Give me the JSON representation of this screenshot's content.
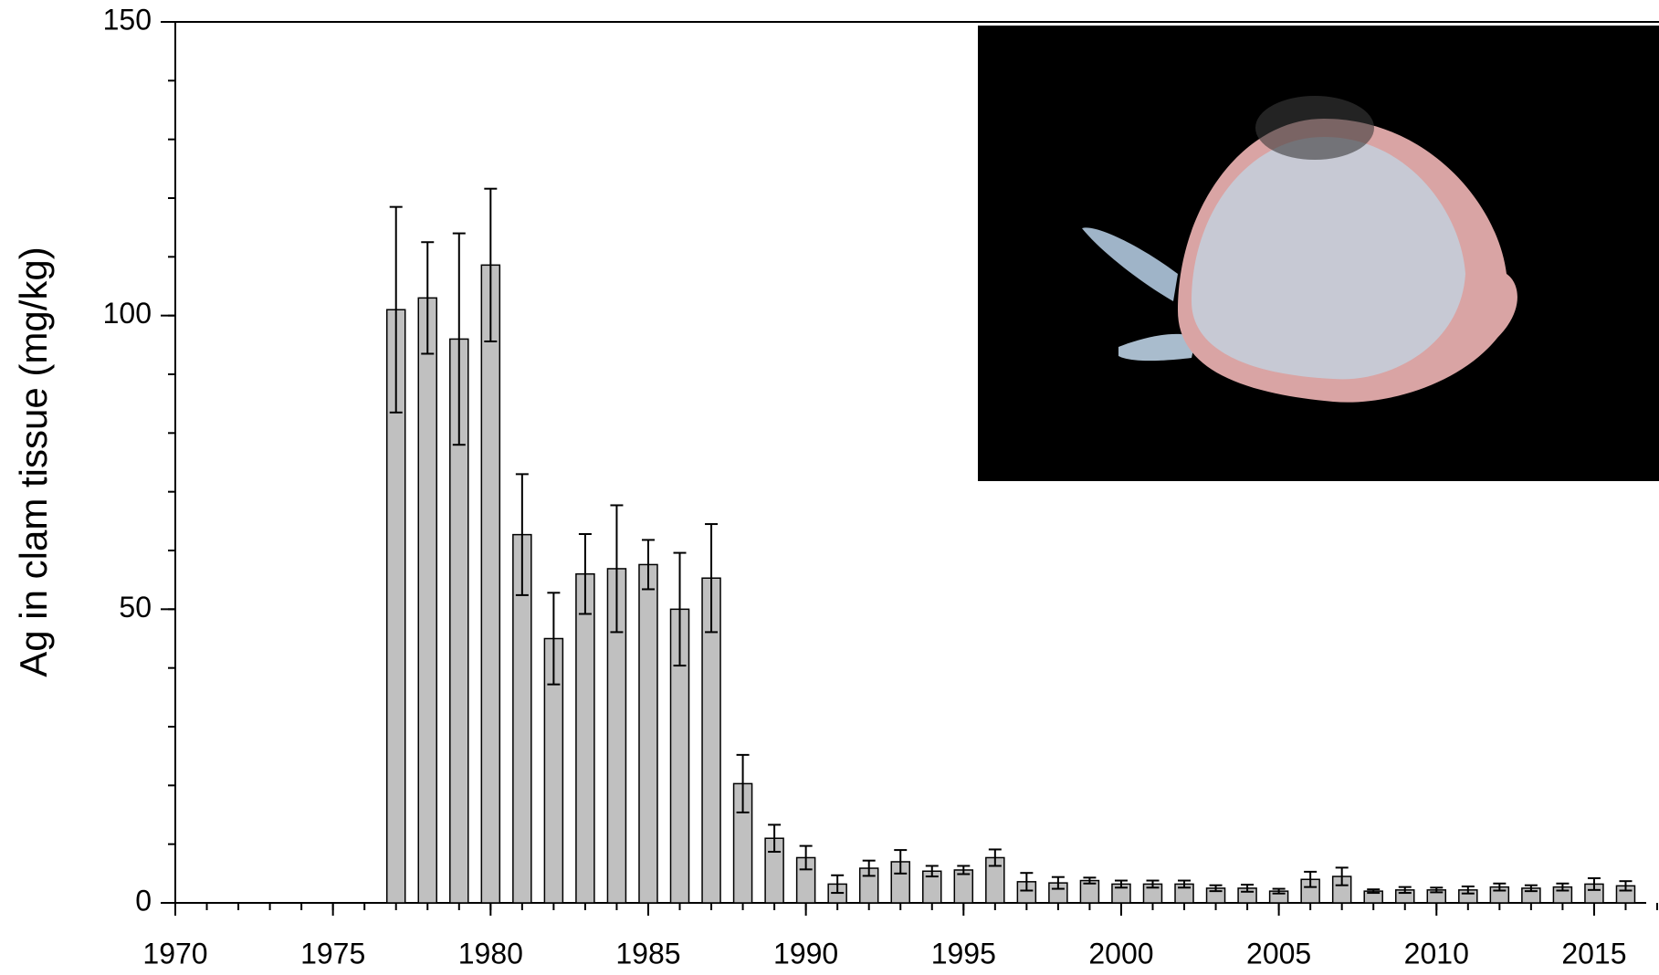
{
  "chart_data": {
    "type": "bar",
    "y_label": "Ag in clam tissue (mg/kg)",
    "x": [
      1977,
      1978,
      1979,
      1980,
      1981,
      1982,
      1983,
      1984,
      1985,
      1986,
      1987,
      1988,
      1989,
      1990,
      1991,
      1992,
      1993,
      1994,
      1995,
      1996,
      1997,
      1998,
      1999,
      2000,
      2001,
      2002,
      2003,
      2004,
      2005,
      2006,
      2007,
      2008,
      2009,
      2010,
      2011,
      2012,
      2013,
      2014,
      2015,
      2016
    ],
    "values": [
      101,
      103,
      96,
      108.6,
      62.7,
      45,
      56,
      56.9,
      57.6,
      50,
      55.3,
      20.3,
      11,
      7.7,
      3.2,
      5.9,
      7,
      5.4,
      5.6,
      7.7,
      3.6,
      3.4,
      3.8,
      3.2,
      3.2,
      3.2,
      2.5,
      2.5,
      2,
      4,
      4.5,
      2,
      2.2,
      2.2,
      2.2,
      2.7,
      2.5,
      2.7,
      3.2,
      2.9
    ],
    "errors": [
      17.5,
      9.5,
      18,
      13,
      10.3,
      7.8,
      6.8,
      10.8,
      4.2,
      9.6,
      9.2,
      4.9,
      2.3,
      2,
      1.5,
      1.3,
      2,
      0.9,
      0.7,
      1.4,
      1.5,
      1,
      0.5,
      0.6,
      0.6,
      0.6,
      0.5,
      0.6,
      0.4,
      1.3,
      1.5,
      0.3,
      0.5,
      0.4,
      0.6,
      0.6,
      0.5,
      0.6,
      1,
      0.8
    ],
    "color": "#c0c0c0",
    "xlim": [
      1970,
      2017
    ],
    "xticks": [
      1970,
      1975,
      1980,
      1985,
      1990,
      1995,
      2000,
      2005,
      2010,
      2015
    ],
    "ylim": [
      0,
      150
    ],
    "yticks": [
      0,
      50,
      100,
      150
    ],
    "minor_tick_step": {
      "x": 1,
      "y": 10
    },
    "grid": false
  }
}
